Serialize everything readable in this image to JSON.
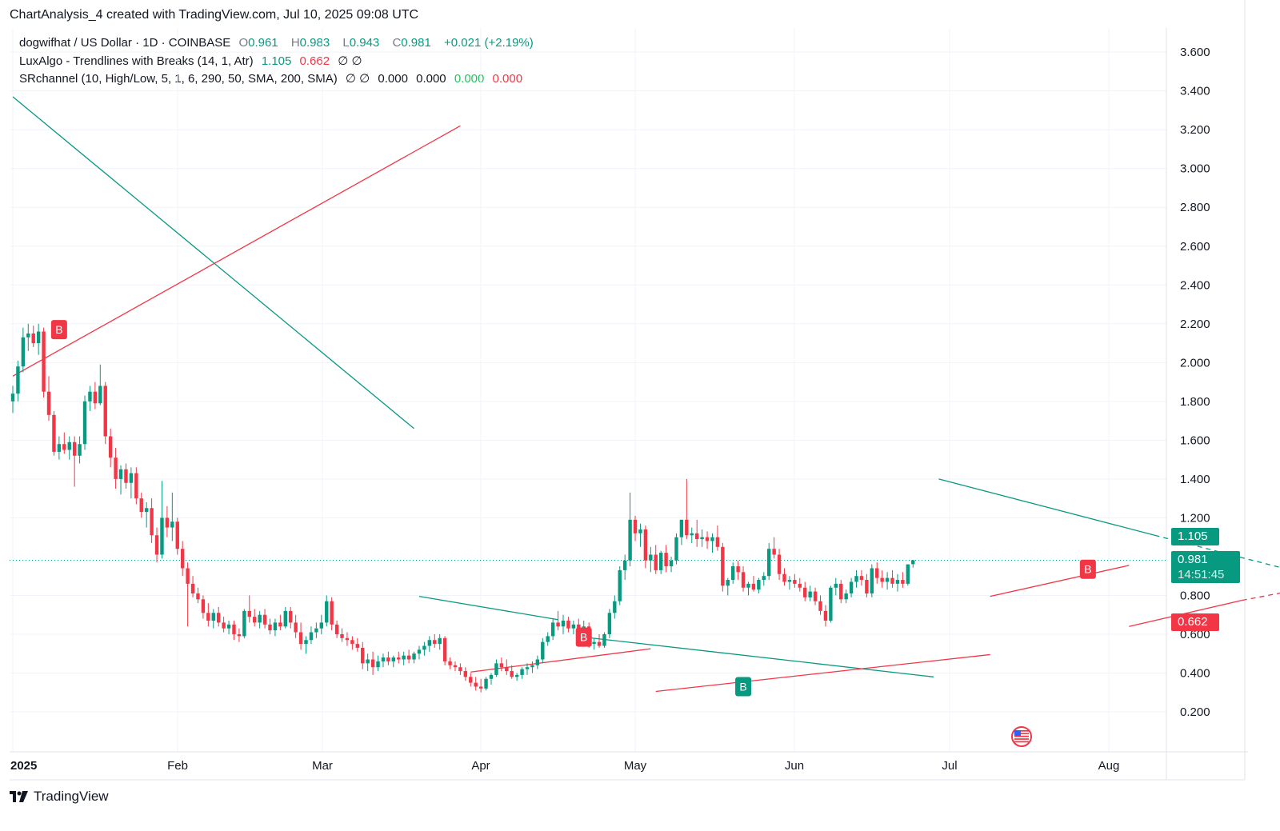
{
  "header": {
    "title": "ChartAnalysis_4 created with TradingView.com, Jul 10, 2025 09:08 UTC"
  },
  "legend": {
    "symbol": "dogwifhat / US Dollar · 1D · COINBASE",
    "open_label": "O",
    "open": "0.961",
    "high_label": "H",
    "high": "0.983",
    "low_label": "L",
    "low": "0.943",
    "close_label": "C",
    "close": "0.981",
    "change": "+0.021 (+2.19%)",
    "indicator1_name": "LuxAlgo - Trendlines with Breaks (14, 1, Atr)",
    "indicator1_upper": "1.105",
    "indicator1_lower": "0.662",
    "indicator1_extra": "∅ ∅",
    "indicator2_name": "SRchannel (10, High/Low, 5, 1, 6, 290, 50, SMA, 200, SMA)",
    "indicator2_extra": "∅ ∅",
    "indicator2_v1": "0.000",
    "indicator2_v2": "0.000",
    "indicator2_v3": "0.000",
    "indicator2_v4": "0.000"
  },
  "price_tags": {
    "upper": "1.105",
    "last": "0.981",
    "countdown": "14:51:45",
    "lower": "0.662"
  },
  "footer": {
    "brand": "TradingView"
  },
  "colors": {
    "up": "#089981",
    "down": "#f23645",
    "grid": "#f0f3fa",
    "axis_text": "#131722"
  },
  "chart_data": {
    "type": "candlestick",
    "y_axis": {
      "ticks": [
        "3.600",
        "3.400",
        "3.200",
        "3.000",
        "2.800",
        "2.600",
        "2.400",
        "2.200",
        "2.000",
        "1.800",
        "1.600",
        "1.400",
        "1.200",
        "0.800",
        "0.600",
        "0.400",
        "0.200"
      ],
      "range": [
        0.1,
        3.7
      ]
    },
    "x_axis": {
      "ticks": [
        "2025",
        "Feb",
        "Mar",
        "Apr",
        "May",
        "Jun",
        "Jul",
        "Aug"
      ]
    },
    "ohlc": [
      [
        1.8,
        1.88,
        1.74,
        1.84
      ],
      [
        1.84,
        2.01,
        1.8,
        1.98
      ],
      [
        1.98,
        2.18,
        1.95,
        2.13
      ],
      [
        2.13,
        2.2,
        2.06,
        2.15
      ],
      [
        2.15,
        2.19,
        2.08,
        2.1
      ],
      [
        2.1,
        2.2,
        2.04,
        2.16
      ],
      [
        2.16,
        2.18,
        1.82,
        1.85
      ],
      [
        1.85,
        1.93,
        1.7,
        1.73
      ],
      [
        1.73,
        1.75,
        1.52,
        1.54
      ],
      [
        1.54,
        1.62,
        1.5,
        1.58
      ],
      [
        1.58,
        1.64,
        1.53,
        1.55
      ],
      [
        1.55,
        1.62,
        1.5,
        1.59
      ],
      [
        1.59,
        1.62,
        1.36,
        1.52
      ],
      [
        1.52,
        1.62,
        1.48,
        1.58
      ],
      [
        1.58,
        1.83,
        1.55,
        1.8
      ],
      [
        1.8,
        1.88,
        1.75,
        1.85
      ],
      [
        1.85,
        1.9,
        1.76,
        1.79
      ],
      [
        1.79,
        1.99,
        1.78,
        1.88
      ],
      [
        1.88,
        1.9,
        1.58,
        1.62
      ],
      [
        1.62,
        1.66,
        1.46,
        1.51
      ],
      [
        1.51,
        1.56,
        1.35,
        1.4
      ],
      [
        1.4,
        1.47,
        1.32,
        1.45
      ],
      [
        1.45,
        1.48,
        1.35,
        1.38
      ],
      [
        1.38,
        1.46,
        1.3,
        1.43
      ],
      [
        1.43,
        1.46,
        1.27,
        1.3
      ],
      [
        1.3,
        1.33,
        1.2,
        1.23
      ],
      [
        1.23,
        1.28,
        1.15,
        1.25
      ],
      [
        1.25,
        1.3,
        1.07,
        1.11
      ],
      [
        1.11,
        1.15,
        0.97,
        1.01
      ],
      [
        1.01,
        1.39,
        0.99,
        1.2
      ],
      [
        1.2,
        1.26,
        1.1,
        1.15
      ],
      [
        1.15,
        1.33,
        1.08,
        1.18
      ],
      [
        1.18,
        1.2,
        1.01,
        1.04
      ],
      [
        1.04,
        1.08,
        0.9,
        0.94
      ],
      [
        0.94,
        0.97,
        0.64,
        0.86
      ],
      [
        0.86,
        0.9,
        0.79,
        0.81
      ],
      [
        0.81,
        0.84,
        0.76,
        0.78
      ],
      [
        0.78,
        0.8,
        0.68,
        0.71
      ],
      [
        0.71,
        0.76,
        0.64,
        0.67
      ],
      [
        0.67,
        0.73,
        0.63,
        0.71
      ],
      [
        0.71,
        0.74,
        0.64,
        0.66
      ],
      [
        0.66,
        0.69,
        0.61,
        0.63
      ],
      [
        0.63,
        0.67,
        0.6,
        0.65
      ],
      [
        0.65,
        0.67,
        0.57,
        0.6
      ],
      [
        0.6,
        0.63,
        0.56,
        0.59
      ],
      [
        0.59,
        0.73,
        0.58,
        0.72
      ],
      [
        0.72,
        0.8,
        0.66,
        0.69
      ],
      [
        0.69,
        0.73,
        0.64,
        0.66
      ],
      [
        0.66,
        0.72,
        0.63,
        0.7
      ],
      [
        0.7,
        0.73,
        0.63,
        0.65
      ],
      [
        0.65,
        0.68,
        0.6,
        0.62
      ],
      [
        0.62,
        0.68,
        0.59,
        0.66
      ],
      [
        0.66,
        0.7,
        0.62,
        0.64
      ],
      [
        0.64,
        0.74,
        0.63,
        0.72
      ],
      [
        0.72,
        0.74,
        0.63,
        0.66
      ],
      [
        0.66,
        0.7,
        0.58,
        0.61
      ],
      [
        0.61,
        0.66,
        0.52,
        0.55
      ],
      [
        0.55,
        0.59,
        0.5,
        0.57
      ],
      [
        0.57,
        0.64,
        0.55,
        0.61
      ],
      [
        0.61,
        0.66,
        0.58,
        0.63
      ],
      [
        0.63,
        0.7,
        0.6,
        0.66
      ],
      [
        0.66,
        0.8,
        0.64,
        0.77
      ],
      [
        0.77,
        0.79,
        0.62,
        0.65
      ],
      [
        0.65,
        0.67,
        0.58,
        0.6
      ],
      [
        0.6,
        0.63,
        0.56,
        0.58
      ],
      [
        0.58,
        0.61,
        0.54,
        0.57
      ],
      [
        0.57,
        0.59,
        0.52,
        0.55
      ],
      [
        0.55,
        0.58,
        0.51,
        0.53
      ],
      [
        0.53,
        0.56,
        0.42,
        0.45
      ],
      [
        0.45,
        0.5,
        0.41,
        0.47
      ],
      [
        0.47,
        0.51,
        0.39,
        0.43
      ],
      [
        0.43,
        0.49,
        0.41,
        0.46
      ],
      [
        0.46,
        0.5,
        0.43,
        0.48
      ],
      [
        0.48,
        0.51,
        0.44,
        0.46
      ],
      [
        0.46,
        0.49,
        0.43,
        0.48
      ],
      [
        0.48,
        0.51,
        0.45,
        0.47
      ],
      [
        0.47,
        0.51,
        0.44,
        0.49
      ],
      [
        0.49,
        0.52,
        0.45,
        0.47
      ],
      [
        0.47,
        0.51,
        0.45,
        0.5
      ],
      [
        0.5,
        0.54,
        0.47,
        0.52
      ],
      [
        0.52,
        0.56,
        0.49,
        0.54
      ],
      [
        0.54,
        0.59,
        0.51,
        0.57
      ],
      [
        0.57,
        0.6,
        0.53,
        0.55
      ],
      [
        0.55,
        0.6,
        0.52,
        0.58
      ],
      [
        0.58,
        0.59,
        0.44,
        0.46
      ],
      [
        0.46,
        0.48,
        0.42,
        0.44
      ],
      [
        0.44,
        0.46,
        0.41,
        0.43
      ],
      [
        0.43,
        0.45,
        0.39,
        0.41
      ],
      [
        0.41,
        0.43,
        0.36,
        0.38
      ],
      [
        0.38,
        0.4,
        0.33,
        0.35
      ],
      [
        0.35,
        0.38,
        0.31,
        0.33
      ],
      [
        0.33,
        0.37,
        0.3,
        0.32
      ],
      [
        0.32,
        0.38,
        0.31,
        0.37
      ],
      [
        0.37,
        0.4,
        0.34,
        0.39
      ],
      [
        0.39,
        0.47,
        0.38,
        0.45
      ],
      [
        0.45,
        0.48,
        0.41,
        0.43
      ],
      [
        0.43,
        0.47,
        0.39,
        0.41
      ],
      [
        0.41,
        0.44,
        0.37,
        0.38
      ],
      [
        0.38,
        0.4,
        0.36,
        0.39
      ],
      [
        0.39,
        0.43,
        0.37,
        0.42
      ],
      [
        0.42,
        0.45,
        0.39,
        0.43
      ],
      [
        0.43,
        0.46,
        0.4,
        0.44
      ],
      [
        0.44,
        0.49,
        0.42,
        0.47
      ],
      [
        0.47,
        0.58,
        0.45,
        0.56
      ],
      [
        0.56,
        0.61,
        0.54,
        0.59
      ],
      [
        0.59,
        0.68,
        0.57,
        0.66
      ],
      [
        0.66,
        0.72,
        0.62,
        0.64
      ],
      [
        0.64,
        0.7,
        0.6,
        0.67
      ],
      [
        0.67,
        0.69,
        0.61,
        0.63
      ],
      [
        0.63,
        0.67,
        0.6,
        0.65
      ],
      [
        0.65,
        0.68,
        0.59,
        0.62
      ],
      [
        0.62,
        0.67,
        0.59,
        0.64
      ],
      [
        0.64,
        0.66,
        0.53,
        0.55
      ],
      [
        0.55,
        0.58,
        0.52,
        0.56
      ],
      [
        0.56,
        0.6,
        0.53,
        0.54
      ],
      [
        0.54,
        0.61,
        0.53,
        0.6
      ],
      [
        0.6,
        0.73,
        0.58,
        0.71
      ],
      [
        0.71,
        0.8,
        0.68,
        0.77
      ],
      [
        0.77,
        0.95,
        0.75,
        0.93
      ],
      [
        0.93,
        1.01,
        0.88,
        0.98
      ],
      [
        0.98,
        1.33,
        0.95,
        1.19
      ],
      [
        1.19,
        1.21,
        1.08,
        1.12
      ],
      [
        1.12,
        1.17,
        1.05,
        1.14
      ],
      [
        1.14,
        1.16,
        0.94,
        0.98
      ],
      [
        0.98,
        1.05,
        0.92,
        1.01
      ],
      [
        1.01,
        1.06,
        0.91,
        0.93
      ],
      [
        0.93,
        1.03,
        0.91,
        1.02
      ],
      [
        1.02,
        1.06,
        0.92,
        0.95
      ],
      [
        0.95,
        1.0,
        0.92,
        0.98
      ],
      [
        0.98,
        1.12,
        0.96,
        1.1
      ],
      [
        1.1,
        1.19,
        1.06,
        1.19
      ],
      [
        1.19,
        1.4,
        1.09,
        1.11
      ],
      [
        1.11,
        1.15,
        1.07,
        1.12
      ],
      [
        1.12,
        1.19,
        1.05,
        1.09
      ],
      [
        1.09,
        1.14,
        1.05,
        1.1
      ],
      [
        1.1,
        1.13,
        1.04,
        1.08
      ],
      [
        1.08,
        1.12,
        1.02,
        1.1
      ],
      [
        1.1,
        1.16,
        1.03,
        1.05
      ],
      [
        1.05,
        1.07,
        0.82,
        0.85
      ],
      [
        0.85,
        0.89,
        0.8,
        0.88
      ],
      [
        0.88,
        0.97,
        0.86,
        0.95
      ],
      [
        0.95,
        0.98,
        0.88,
        0.92
      ],
      [
        0.92,
        0.95,
        0.82,
        0.84
      ],
      [
        0.84,
        0.87,
        0.8,
        0.86
      ],
      [
        0.86,
        0.9,
        0.82,
        0.83
      ],
      [
        0.83,
        0.89,
        0.81,
        0.88
      ],
      [
        0.88,
        0.92,
        0.85,
        0.9
      ],
      [
        0.9,
        1.07,
        0.88,
        1.04
      ],
      [
        1.04,
        1.1,
        0.99,
        1.01
      ],
      [
        1.01,
        1.04,
        0.88,
        0.91
      ],
      [
        0.91,
        0.94,
        0.85,
        0.87
      ],
      [
        0.87,
        0.9,
        0.83,
        0.88
      ],
      [
        0.88,
        0.91,
        0.84,
        0.86
      ],
      [
        0.86,
        0.89,
        0.82,
        0.84
      ],
      [
        0.84,
        0.87,
        0.77,
        0.79
      ],
      [
        0.79,
        0.85,
        0.77,
        0.82
      ],
      [
        0.82,
        0.84,
        0.75,
        0.77
      ],
      [
        0.77,
        0.8,
        0.7,
        0.72
      ],
      [
        0.72,
        0.75,
        0.64,
        0.67
      ],
      [
        0.67,
        0.85,
        0.66,
        0.84
      ],
      [
        0.84,
        0.89,
        0.8,
        0.86
      ],
      [
        0.86,
        0.88,
        0.76,
        0.78
      ],
      [
        0.78,
        0.83,
        0.76,
        0.81
      ],
      [
        0.81,
        0.89,
        0.79,
        0.87
      ],
      [
        0.87,
        0.93,
        0.84,
        0.9
      ],
      [
        0.9,
        0.93,
        0.85,
        0.88
      ],
      [
        0.88,
        0.91,
        0.79,
        0.81
      ],
      [
        0.81,
        0.96,
        0.79,
        0.94
      ],
      [
        0.94,
        0.97,
        0.86,
        0.89
      ],
      [
        0.89,
        0.93,
        0.84,
        0.87
      ],
      [
        0.87,
        0.92,
        0.83,
        0.89
      ],
      [
        0.89,
        0.93,
        0.84,
        0.86
      ],
      [
        0.86,
        0.91,
        0.82,
        0.88
      ],
      [
        0.88,
        0.92,
        0.84,
        0.86
      ],
      [
        0.86,
        0.96,
        0.85,
        0.96
      ],
      [
        0.961,
        0.983,
        0.943,
        0.981
      ]
    ],
    "trendlines": [
      {
        "color": "#089981",
        "dashed": false,
        "from": [
          0,
          3.37
        ],
        "to": [
          78,
          1.66
        ]
      },
      {
        "color": "#f23645",
        "dashed": false,
        "from": [
          0,
          1.93
        ],
        "to": [
          87,
          3.22
        ]
      },
      {
        "color": "#089981",
        "dashed": false,
        "from": [
          79,
          0.795
        ],
        "to": [
          106,
          0.675
        ]
      },
      {
        "color": "#f23645",
        "dashed": false,
        "from": [
          89,
          0.405
        ],
        "to": [
          124,
          0.525
        ]
      },
      {
        "color": "#089981",
        "dashed": false,
        "from": [
          111,
          0.585
        ],
        "to": [
          179,
          0.38
        ]
      },
      {
        "color": "#f23645",
        "dashed": false,
        "from": [
          125,
          0.305
        ],
        "to": [
          190,
          0.495
        ]
      },
      {
        "color": "#089981",
        "dashed": false,
        "from": [
          180,
          1.4
        ],
        "to": [
          222,
          1.11
        ]
      },
      {
        "color": "#089981",
        "dashed": true,
        "from": [
          222,
          1.11
        ],
        "to": [
          283,
          0.695
        ]
      },
      {
        "color": "#f23645",
        "dashed": false,
        "from": [
          190,
          0.795
        ],
        "to": [
          217,
          0.955
        ]
      },
      {
        "color": "#f23645",
        "dashed": false,
        "from": [
          217,
          0.64
        ],
        "to": [
          239,
          0.775
        ]
      },
      {
        "color": "#f23645",
        "dashed": true,
        "from": [
          239,
          0.775
        ],
        "to": [
          283,
          0.995
        ]
      }
    ],
    "break_labels": [
      {
        "text": "B",
        "color": "#f23645",
        "x": 9,
        "y": 2.17
      },
      {
        "text": "B",
        "color": "#f23645",
        "x": 111,
        "y": 0.585
      },
      {
        "text": "B",
        "color": "#089981",
        "x": 142,
        "y": 0.33
      },
      {
        "text": "B",
        "color": "#f23645",
        "x": 209,
        "y": 0.935
      }
    ],
    "last_price": 0.981
  }
}
